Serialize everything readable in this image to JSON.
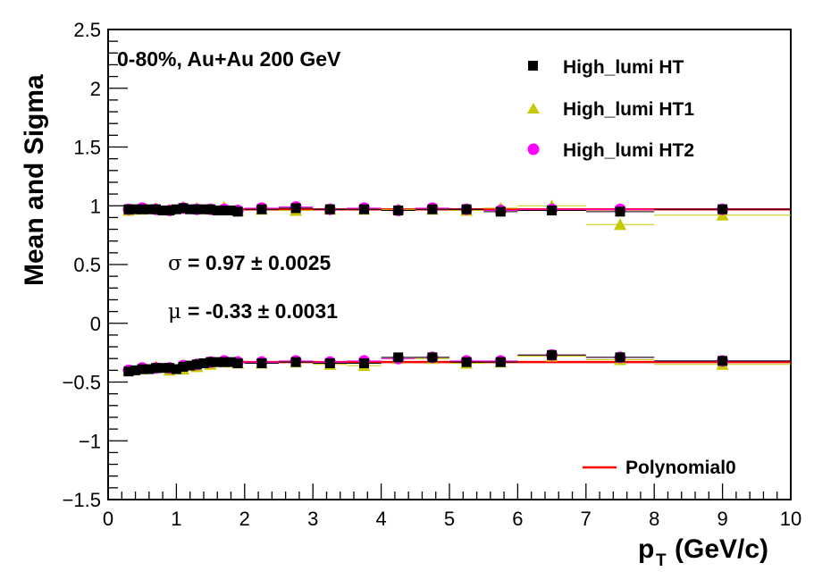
{
  "chart_data": {
    "type": "scatter",
    "title": "",
    "xlabel": "p",
    "xlabel_sub": "T",
    "xlabel_unit": "(GeV/c)",
    "ylabel": "Mean and Sigma",
    "xlim": [
      0,
      10
    ],
    "ylim": [
      -1.5,
      2.5
    ],
    "x_ticks": [
      0,
      1,
      2,
      3,
      4,
      5,
      6,
      7,
      8,
      9,
      10
    ],
    "x_tick_labels": [
      "0",
      "1",
      "2",
      "3",
      "4",
      "5",
      "6",
      "7",
      "8",
      "9",
      "10"
    ],
    "y_ticks": [
      -1.5,
      -1,
      -0.5,
      0,
      0.5,
      1,
      1.5,
      2,
      2.5
    ],
    "y_tick_labels": [
      "−1.5",
      "−1",
      "−0.5",
      "0",
      "0.5",
      "1",
      "1.5",
      "2",
      "2.5"
    ],
    "grid": false,
    "legend_position": "top-right",
    "annotations": {
      "system": "0-80%, Au+Au 200 GeV",
      "sigma_symbol": "σ",
      "sigma_text": "= 0.97 ± 0.0025",
      "mu_symbol": "μ",
      "mu_text": "= -0.33 ± 0.0031"
    },
    "series": [
      {
        "name": "High_lumi HT",
        "marker": "square",
        "color": "#000000",
        "x": [
          0.3,
          0.4,
          0.5,
          0.6,
          0.7,
          0.8,
          0.9,
          1.0,
          1.1,
          1.2,
          1.3,
          1.4,
          1.5,
          1.6,
          1.7,
          1.8,
          1.9,
          2.25,
          2.75,
          3.25,
          3.75,
          4.25,
          4.75,
          5.25,
          5.75,
          6.5,
          7.5,
          9.0
        ],
        "sigma": [
          0.97,
          0.97,
          0.97,
          0.97,
          0.97,
          0.96,
          0.96,
          0.97,
          0.98,
          0.97,
          0.97,
          0.97,
          0.97,
          0.96,
          0.96,
          0.96,
          0.95,
          0.97,
          0.98,
          0.97,
          0.97,
          0.96,
          0.97,
          0.97,
          0.95,
          0.96,
          0.95,
          0.97
        ],
        "mean": [
          -0.41,
          -0.4,
          -0.39,
          -0.39,
          -0.38,
          -0.38,
          -0.38,
          -0.39,
          -0.37,
          -0.36,
          -0.35,
          -0.34,
          -0.33,
          -0.33,
          -0.33,
          -0.33,
          -0.34,
          -0.34,
          -0.33,
          -0.34,
          -0.34,
          -0.29,
          -0.29,
          -0.33,
          -0.33,
          -0.27,
          -0.29,
          -0.32
        ]
      },
      {
        "name": "High_lumi HT1",
        "marker": "triangle",
        "color": "#c8c800",
        "x": [
          0.3,
          0.5,
          0.7,
          0.9,
          1.1,
          1.3,
          1.5,
          1.7,
          1.9,
          2.25,
          2.75,
          3.25,
          3.75,
          4.25,
          4.75,
          5.25,
          5.75,
          6.5,
          7.5,
          9.0
        ],
        "sigma": [
          0.96,
          0.97,
          0.98,
          0.97,
          0.99,
          0.98,
          0.97,
          0.99,
          0.96,
          0.97,
          0.96,
          0.97,
          0.97,
          0.97,
          0.97,
          0.96,
          0.98,
          1.0,
          0.84,
          0.92
        ],
        "mean": [
          -0.4,
          -0.39,
          -0.37,
          -0.4,
          -0.39,
          -0.37,
          -0.35,
          -0.33,
          -0.34,
          -0.34,
          -0.33,
          -0.35,
          -0.36,
          -0.3,
          -0.3,
          -0.34,
          -0.33,
          -0.28,
          -0.31,
          -0.35
        ]
      },
      {
        "name": "High_lumi HT2",
        "marker": "circle",
        "color": "#ff00ff",
        "x": [
          0.3,
          0.5,
          0.7,
          0.9,
          1.1,
          1.3,
          1.5,
          1.7,
          1.9,
          2.25,
          2.75,
          3.25,
          3.75,
          4.25,
          4.75,
          5.25,
          5.75,
          6.5,
          7.5,
          9.0
        ],
        "sigma": [
          0.97,
          0.98,
          0.97,
          0.96,
          0.98,
          0.97,
          0.97,
          0.97,
          0.96,
          0.98,
          0.99,
          0.97,
          0.98,
          0.96,
          0.98,
          0.97,
          0.96,
          0.97,
          0.97,
          0.97
        ],
        "mean": [
          -0.4,
          -0.38,
          -0.38,
          -0.38,
          -0.36,
          -0.35,
          -0.33,
          -0.32,
          -0.33,
          -0.33,
          -0.32,
          -0.33,
          -0.32,
          -0.3,
          -0.29,
          -0.32,
          -0.32,
          -0.27,
          -0.29,
          -0.32
        ]
      }
    ],
    "fits": [
      {
        "name": "Polynomial0",
        "color": "#ff0000",
        "value": 0.97,
        "xrange": [
          1.6,
          10
        ]
      },
      {
        "name": "Polynomial0",
        "color": "#ff0000",
        "value": -0.33,
        "xrange": [
          1.6,
          10
        ]
      }
    ],
    "fit_legend": "Polynomial0"
  }
}
